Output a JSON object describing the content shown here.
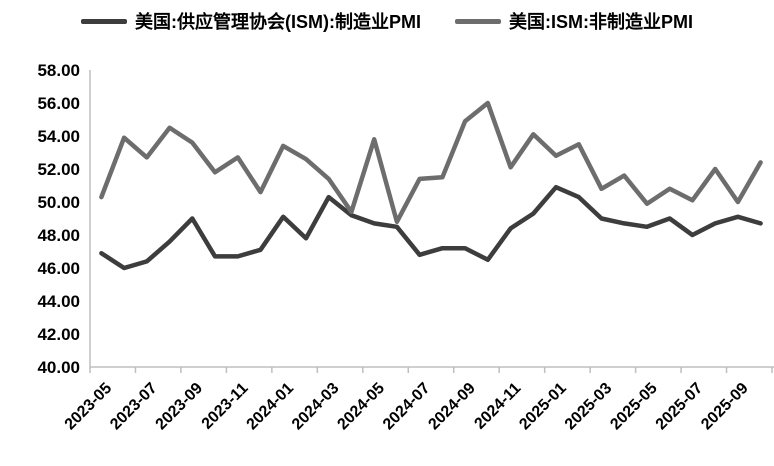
{
  "legend": {
    "items": [
      {
        "id": "manufacturing_pmi",
        "label": "美国:供应管理协会(ISM):制造业PMI",
        "color": "#3d3d3d"
      },
      {
        "id": "non_manufacturing_pmi",
        "label": "美国:ISM:非制造业PMI",
        "color": "#6d6d6d"
      }
    ]
  },
  "chart_data": {
    "type": "line",
    "title": "",
    "xlabel": "",
    "ylabel": "",
    "x": [
      "2023-05",
      "2023-06",
      "2023-07",
      "2023-08",
      "2023-09",
      "2023-10",
      "2023-11",
      "2023-12",
      "2024-01",
      "2024-02",
      "2024-03",
      "2024-04",
      "2024-05",
      "2024-06",
      "2024-07",
      "2024-08",
      "2024-09",
      "2024-10",
      "2024-11",
      "2024-12",
      "2025-01",
      "2025-02",
      "2025-03",
      "2025-04",
      "2025-05",
      "2025-06",
      "2025-07",
      "2025-08",
      "2025-09",
      "2025-10"
    ],
    "series": [
      {
        "id": "manufacturing_pmi",
        "name": "美国:供应管理协会(ISM):制造业PMI",
        "color": "#3d3d3d",
        "values": [
          46.9,
          46.0,
          46.4,
          47.6,
          49.0,
          46.7,
          46.7,
          47.1,
          49.1,
          47.8,
          50.3,
          49.2,
          48.7,
          48.5,
          46.8,
          47.2,
          47.2,
          46.5,
          48.4,
          49.3,
          50.9,
          50.3,
          49.0,
          48.7,
          48.5,
          49.0,
          48.0,
          48.7,
          49.1,
          48.7
        ]
      },
      {
        "id": "non_manufacturing_pmi",
        "name": "美国:ISM:非制造业PMI",
        "color": "#6d6d6d",
        "values": [
          50.3,
          53.9,
          52.7,
          54.5,
          53.6,
          51.8,
          52.7,
          50.6,
          53.4,
          52.6,
          51.4,
          49.4,
          53.8,
          48.8,
          51.4,
          51.5,
          54.9,
          56.0,
          52.1,
          54.1,
          52.8,
          53.5,
          50.8,
          51.6,
          49.9,
          50.8,
          50.1,
          52.0,
          50.0,
          52.4
        ]
      }
    ],
    "ylim": [
      40,
      58
    ],
    "ytick_step": 2,
    "ytick_labels": [
      "58.00",
      "56.00",
      "54.00",
      "52.00",
      "50.00",
      "48.00",
      "46.00",
      "44.00",
      "42.00",
      "40.00"
    ],
    "xtick_labels": [
      "2023-05",
      "2023-07",
      "2023-09",
      "2023-11",
      "2024-01",
      "2024-03",
      "2024-05",
      "2024-07",
      "2024-09",
      "2024-11",
      "2025-01",
      "2025-03",
      "2025-05",
      "2025-07",
      "2025-09"
    ],
    "xtick_every": 2,
    "grid": false,
    "legend_position": "top",
    "colors": {
      "axis": "#bfbfbf",
      "text": "#000000",
      "background": "#ffffff"
    }
  }
}
